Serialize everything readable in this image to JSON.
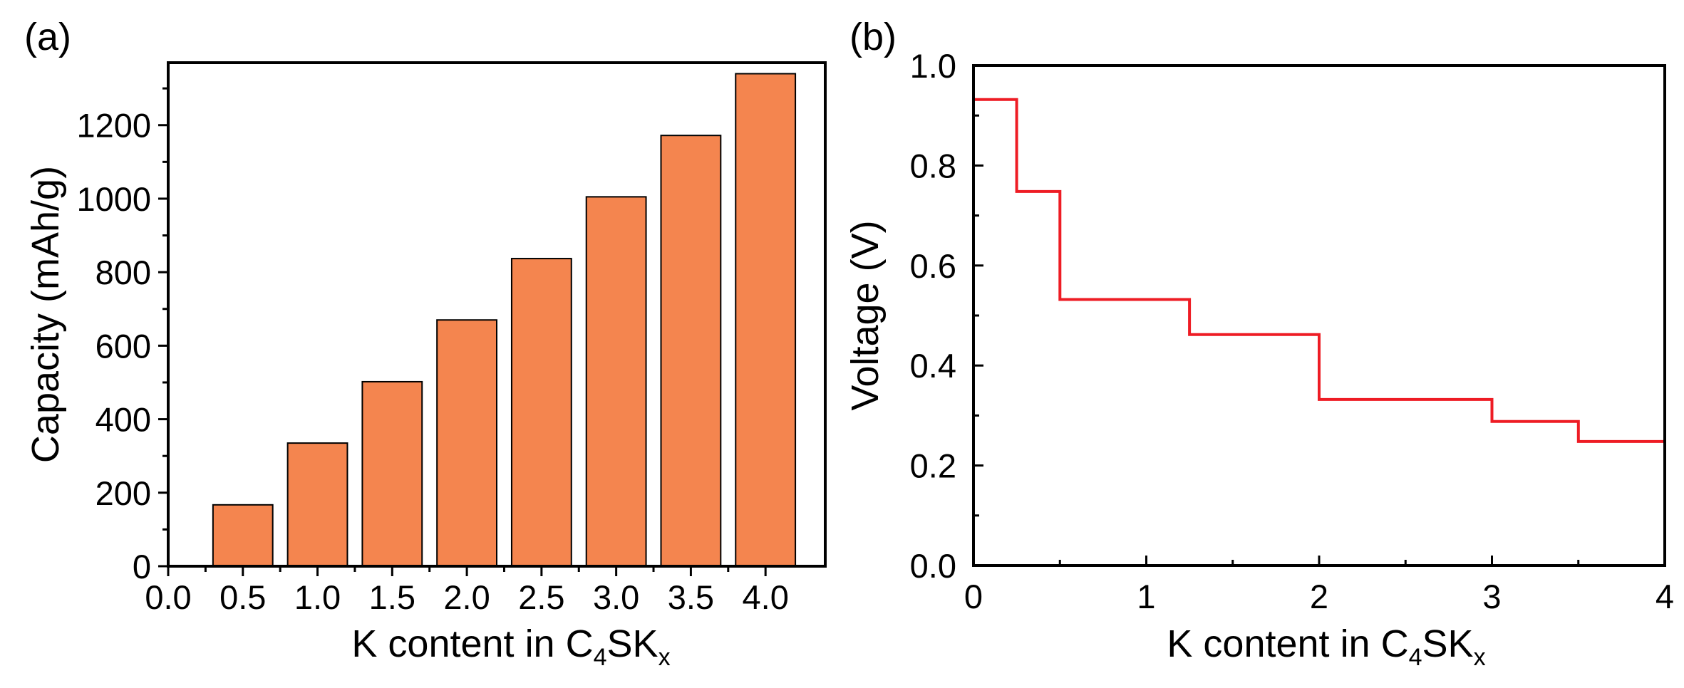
{
  "chart_data": [
    {
      "type": "bar",
      "panel_label": "(a)",
      "categories": [
        "0.5",
        "1.0",
        "1.5",
        "2.0",
        "2.5",
        "3.0",
        "3.5",
        "4.0"
      ],
      "x": [
        0.5,
        1.0,
        1.5,
        2.0,
        2.5,
        3.0,
        3.5,
        4.0
      ],
      "values": [
        167,
        335,
        502,
        670,
        837,
        1005,
        1172,
        1340
      ],
      "xlabel": {
        "main": "K content in ",
        "formula": [
          {
            "t": "C"
          },
          {
            "t": "4",
            "sub": true
          },
          {
            "t": "SK"
          },
          {
            "t": "x",
            "sub": true
          }
        ]
      },
      "ylabel": "Capacity (mAh/g)",
      "xlim": [
        0.0,
        4.4
      ],
      "ylim": [
        0,
        1370
      ],
      "xticks": [
        "0.0",
        "0.5",
        "1.0",
        "1.5",
        "2.0",
        "2.5",
        "3.0",
        "3.5",
        "4.0"
      ],
      "xtick_values": [
        0.0,
        0.5,
        1.0,
        1.5,
        2.0,
        2.5,
        3.0,
        3.5,
        4.0
      ],
      "yticks": [
        "0",
        "200",
        "400",
        "600",
        "800",
        "1000",
        "1200"
      ],
      "ytick_values": [
        0,
        200,
        400,
        600,
        800,
        1000,
        1200
      ],
      "bar_color": "#f4854f",
      "bar_edge_color": "#000000",
      "grid": false
    },
    {
      "type": "line",
      "step": true,
      "panel_label": "(b)",
      "series": [
        {
          "name": "Voltage",
          "color": "#ee1c24",
          "points": [
            [
              0,
              0.932
            ],
            [
              0.25,
              0.932
            ],
            [
              0.25,
              0.748
            ],
            [
              0.5,
              0.748
            ],
            [
              0.5,
              0.532
            ],
            [
              1.25,
              0.532
            ],
            [
              1.25,
              0.462
            ],
            [
              2.0,
              0.462
            ],
            [
              2.0,
              0.332
            ],
            [
              3.0,
              0.332
            ],
            [
              3.0,
              0.288
            ],
            [
              3.5,
              0.288
            ],
            [
              3.5,
              0.248
            ],
            [
              4.0,
              0.248
            ]
          ]
        }
      ],
      "xlabel": {
        "main": "K content  in ",
        "formula": [
          {
            "t": "C"
          },
          {
            "t": "4",
            "sub": true
          },
          {
            "t": "SK"
          },
          {
            "t": "x",
            "sub": true
          }
        ]
      },
      "ylabel": "Voltage (V)",
      "xlim": [
        0,
        4
      ],
      "ylim": [
        0.0,
        1.0
      ],
      "xticks": [
        "0",
        "1",
        "2",
        "3",
        "4"
      ],
      "xtick_values": [
        0,
        1,
        2,
        3,
        4
      ],
      "yticks": [
        "0.0",
        "0.2",
        "0.4",
        "0.6",
        "0.8",
        "1.0"
      ],
      "ytick_values": [
        0.0,
        0.2,
        0.4,
        0.6,
        0.8,
        1.0
      ],
      "grid": false
    }
  ]
}
